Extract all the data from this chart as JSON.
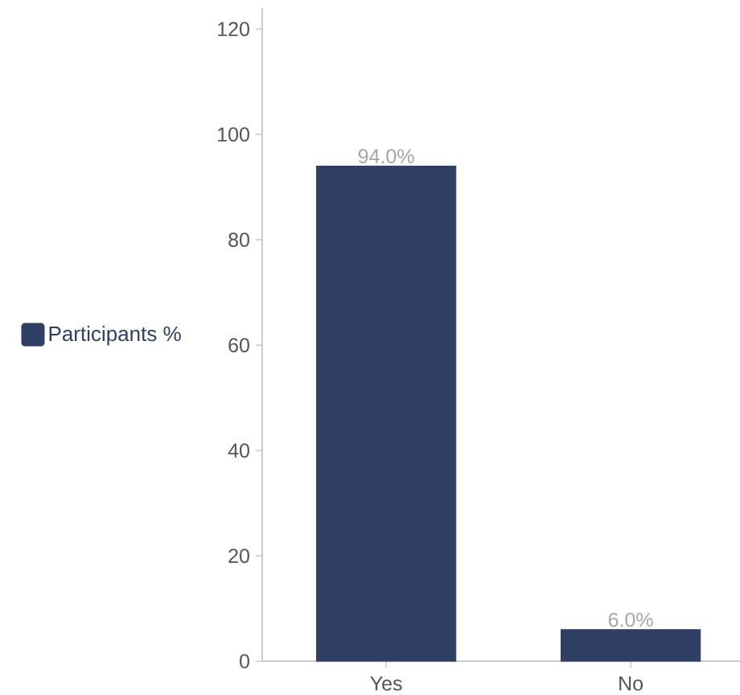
{
  "chart_data": {
    "type": "bar",
    "categories": [
      "Yes",
      "No"
    ],
    "series": [
      {
        "name": "Participants %",
        "color": "#2f3e63",
        "values": [
          94,
          6
        ],
        "value_labels": [
          "94.0%",
          "6.0%"
        ]
      }
    ],
    "ylim": [
      0,
      124
    ],
    "yticks": [
      0,
      20,
      40,
      60,
      80,
      100,
      120
    ],
    "legend": "left"
  }
}
